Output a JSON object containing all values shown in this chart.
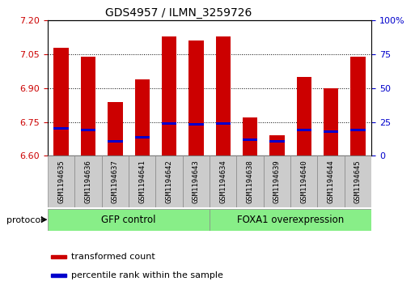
{
  "title": "GDS4957 / ILMN_3259726",
  "samples": [
    "GSM1194635",
    "GSM1194636",
    "GSM1194637",
    "GSM1194641",
    "GSM1194642",
    "GSM1194643",
    "GSM1194634",
    "GSM1194638",
    "GSM1194639",
    "GSM1194640",
    "GSM1194644",
    "GSM1194645"
  ],
  "transformed_count": [
    7.08,
    7.04,
    6.84,
    6.94,
    7.13,
    7.11,
    7.13,
    6.77,
    6.69,
    6.95,
    6.9,
    7.04
  ],
  "percentile_rank": [
    20,
    19,
    11,
    14,
    24,
    23,
    24,
    12,
    11,
    19,
    18,
    19
  ],
  "group_labels": [
    "GFP control",
    "FOXA1 overexpression"
  ],
  "group_ranges": [
    [
      0,
      6
    ],
    [
      6,
      12
    ]
  ],
  "ymin": 6.6,
  "ymax": 7.2,
  "bar_color": "#cc0000",
  "marker_color": "#0000cc",
  "group_color": "#88ee88",
  "sample_box_color": "#cccccc",
  "tick_label_color_left": "#cc0000",
  "tick_label_color_right": "#0000cc",
  "legend_entries": [
    "transformed count",
    "percentile rank within the sample"
  ],
  "legend_colors": [
    "#cc0000",
    "#0000cc"
  ],
  "yticks_left": [
    6.6,
    6.75,
    6.9,
    7.05,
    7.2
  ],
  "yticks_right": [
    0,
    25,
    50,
    75,
    100
  ],
  "protocol_label": "protocol"
}
